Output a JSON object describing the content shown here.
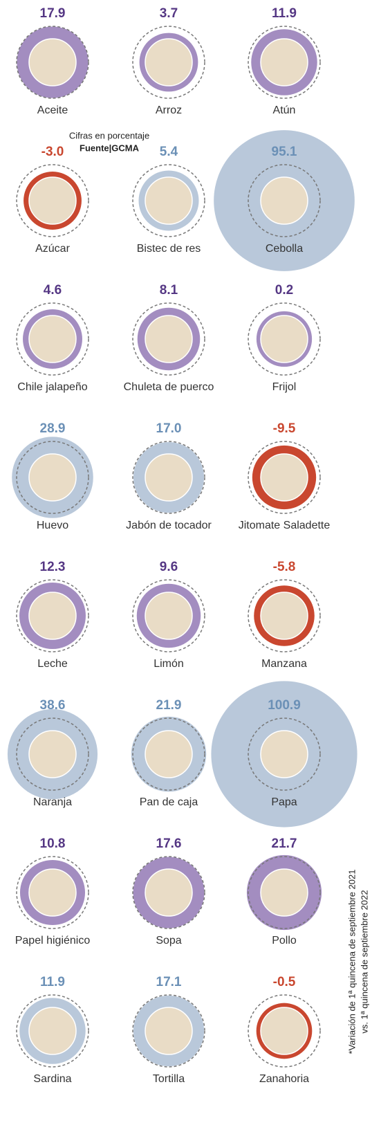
{
  "chart_data": {
    "type": "bubble",
    "note_top": "Cifras en porcentaje",
    "source": "Fuente|GCMA",
    "footnote": [
      "*Variación de 1ª quincena de septiembre 2021",
      "vs. 1ª quincena de septiembre 2022"
    ],
    "categories": [
      "Aceite",
      "Arroz",
      "Atún",
      "Azúcar",
      "Bistec de res",
      "Cebolla",
      "Chile jalapeño",
      "Chuleta de puerco",
      "Frijol",
      "Huevo",
      "Jabón de tocador",
      "Jitomate Saladette",
      "Leche",
      "Limón",
      "Manzana",
      "Naranja",
      "Pan de caja",
      "Papa",
      "Papel higiénico",
      "Sopa",
      "Pollo",
      "Sardina",
      "Tortilla",
      "Zanahoria"
    ],
    "values": [
      17.9,
      3.7,
      11.9,
      -3.0,
      5.4,
      95.1,
      4.6,
      8.1,
      0.2,
      28.9,
      17.0,
      -9.5,
      12.3,
      9.6,
      -5.8,
      38.6,
      21.9,
      100.9,
      10.8,
      17.6,
      21.7,
      11.9,
      17.1,
      -0.5
    ],
    "value_labels": [
      "17.9",
      "3.7",
      "11.9",
      "-3.0",
      "5.4",
      "95.1",
      "4.6",
      "8.1",
      "0.2",
      "28.9",
      "17.0",
      "-9.5",
      "12.3",
      "9.6",
      "-5.8",
      "38.6",
      "21.9",
      "100.9",
      "10.8",
      "17.6",
      "21.7",
      "11.9",
      "17.1",
      "-0.5"
    ],
    "colors": [
      "#a38dc0",
      "#a38dc0",
      "#a38dc0",
      "#c9472f",
      "#b9c8da",
      "#b9c8da",
      "#a38dc0",
      "#a38dc0",
      "#a38dc0",
      "#b9c8da",
      "#b9c8da",
      "#c9472f",
      "#a38dc0",
      "#a38dc0",
      "#c9472f",
      "#b9c8da",
      "#b9c8da",
      "#b9c8da",
      "#a38dc0",
      "#a38dc0",
      "#a38dc0",
      "#b9c8da",
      "#b9c8da",
      "#c9472f"
    ],
    "label_colors": [
      "#553784",
      "#553784",
      "#553784",
      "#c9472f",
      "#6b90b6",
      "#6b90b6",
      "#553784",
      "#553784",
      "#553784",
      "#6b90b6",
      "#6b90b6",
      "#c9472f",
      "#553784",
      "#553784",
      "#c9472f",
      "#6b90b6",
      "#6b90b6",
      "#6b90b6",
      "#553784",
      "#553784",
      "#553784",
      "#6b90b6",
      "#6b90b6",
      "#c9472f"
    ]
  }
}
